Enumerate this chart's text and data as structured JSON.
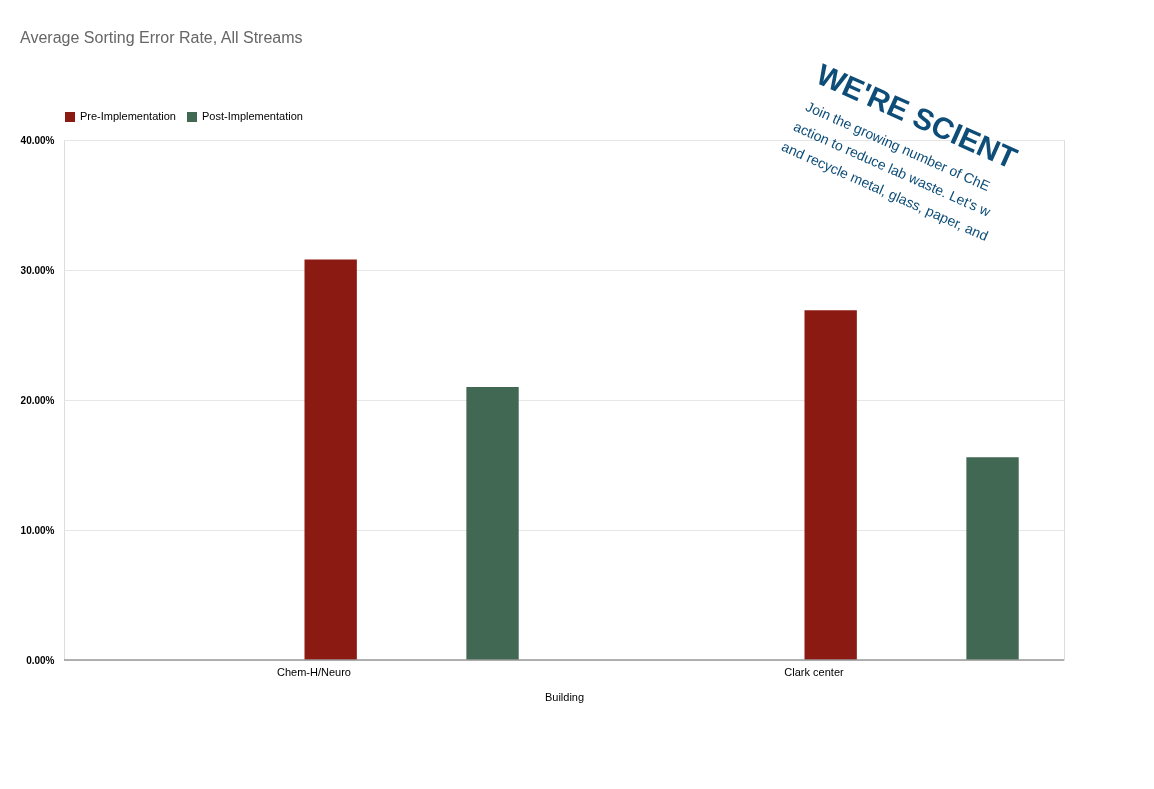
{
  "chart_data": {
    "type": "bar",
    "title": "Average Sorting Error Rate, All Streams",
    "xlabel": "Building",
    "categories": [
      "Chem-H/Neuro",
      "Clark center"
    ],
    "series": [
      {
        "name": "Pre-Implementation",
        "color": "#8b1a13",
        "values": [
          30.8,
          26.9
        ]
      },
      {
        "name": "Post-Implementation",
        "color": "#416852",
        "values": [
          21.0,
          15.6
        ]
      }
    ],
    "ylim": [
      0,
      40
    ],
    "yticks": [
      {
        "value": 0,
        "label": "0.00%"
      },
      {
        "value": 10,
        "label": "10.00%"
      },
      {
        "value": 20,
        "label": "20.00%"
      },
      {
        "value": 30,
        "label": "30.00%"
      },
      {
        "value": 40,
        "label": "40.00%"
      }
    ],
    "grid": "y",
    "legend": "top",
    "annotations": [
      "WE'RE SCIENT",
      "Join the growing number of ChE",
      "action to reduce lab waste. Let's w",
      "and recycle metal, glass, paper, and"
    ]
  }
}
